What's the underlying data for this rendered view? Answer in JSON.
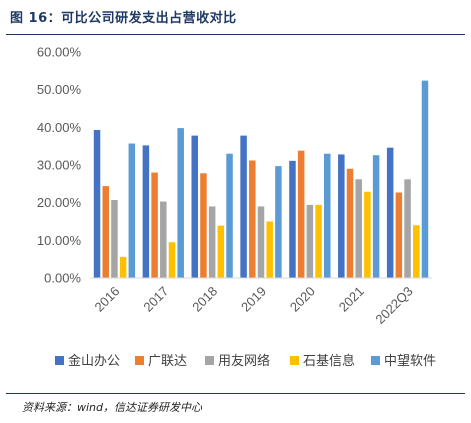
{
  "figure": {
    "title": "图 16：可比公司研发支出占营收对比",
    "source": "资料来源：wind，信达证券研发中心"
  },
  "chart_data": {
    "type": "bar",
    "categories": [
      "2016",
      "2017",
      "2018",
      "2019",
      "2020",
      "2021",
      "2022Q3"
    ],
    "series": [
      {
        "name": "金山办公",
        "color": "#4472c4",
        "values": [
          39.3,
          35.2,
          37.8,
          37.8,
          31.1,
          32.8,
          34.6
        ]
      },
      {
        "name": "广联达",
        "color": "#ed7d31",
        "values": [
          24.4,
          28.0,
          27.8,
          31.2,
          33.8,
          29.0,
          22.7
        ]
      },
      {
        "name": "用友网络",
        "color": "#a5a5a5",
        "values": [
          20.7,
          20.3,
          19.0,
          19.0,
          19.4,
          26.2,
          26.2
        ]
      },
      {
        "name": "石基信息",
        "color": "#ffc000",
        "values": [
          5.6,
          9.5,
          13.9,
          15.0,
          19.4,
          22.9,
          14.0
        ]
      },
      {
        "name": "中望软件",
        "color": "#5b9bd5",
        "values": [
          35.7,
          39.8,
          33.0,
          29.7,
          33.0,
          32.6,
          52.4
        ]
      }
    ],
    "y_tick_labels": [
      "0.00%",
      "10.00%",
      "20.00%",
      "30.00%",
      "40.00%",
      "50.00%",
      "60.00%"
    ],
    "ylim": [
      0,
      60
    ],
    "unit": "%",
    "grid": false,
    "legend_position": "bottom"
  }
}
